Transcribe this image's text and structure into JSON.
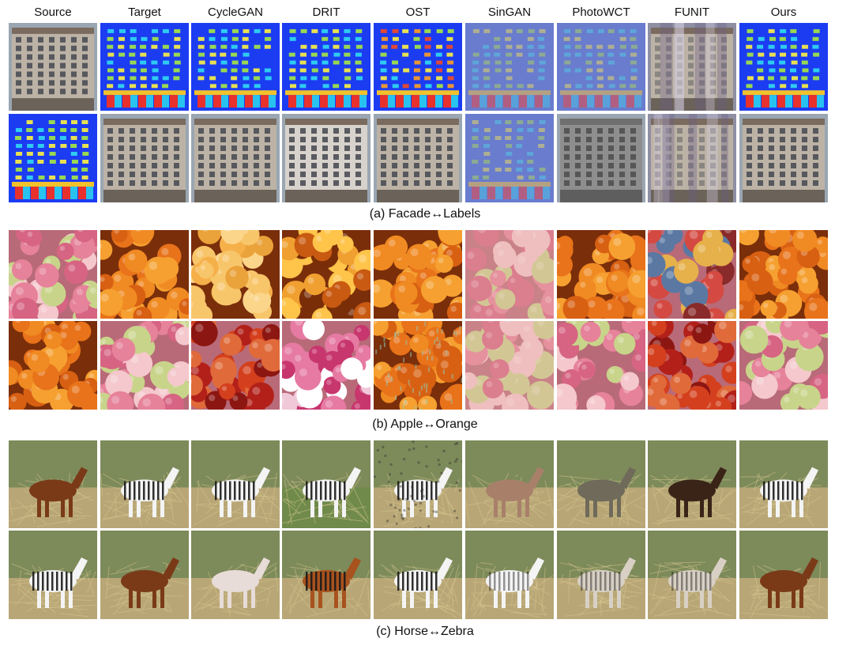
{
  "columns": [
    "Source",
    "Target",
    "CycleGAN",
    "DRIT",
    "OST",
    "SinGAN",
    "PhotoWCT",
    "FUNIT",
    "Ours"
  ],
  "sections": [
    {
      "caption": "(a) Facade↔Labels",
      "rows": [
        [
          "photo",
          "labels",
          "labels",
          "labels",
          "labels-noisy",
          "labels-faded",
          "labels-faded",
          "photo-blur",
          "labels"
        ],
        [
          "labels",
          "photo",
          "photo",
          "photo-pale",
          "photo",
          "labels-faded",
          "photo-gray",
          "photo-blur",
          "photo"
        ]
      ]
    },
    {
      "caption": "(b) Apple↔Orange",
      "rows": [
        [
          "apple",
          "orange",
          "orange-light",
          "orange-dark",
          "orange",
          "apple-blur",
          "orange",
          "apple-dark",
          "orange"
        ],
        [
          "orange",
          "apple",
          "apple-red",
          "apple-pale",
          "orange-noisy",
          "apple-blur",
          "apple",
          "apple-red",
          "apple"
        ]
      ]
    },
    {
      "caption": "(c) Horse↔Zebra",
      "rows": [
        [
          "horse",
          "zebra",
          "zebra",
          "zebra-green",
          "zebra-noisy",
          "horse-pale",
          "horse-gray",
          "horse-dark",
          "zebra"
        ],
        [
          "zebra",
          "horse",
          "horse-white",
          "zebra-brown",
          "zebra",
          "zebra-blur",
          "zebra-pale",
          "zebra-pale",
          "horse"
        ]
      ]
    }
  ]
}
